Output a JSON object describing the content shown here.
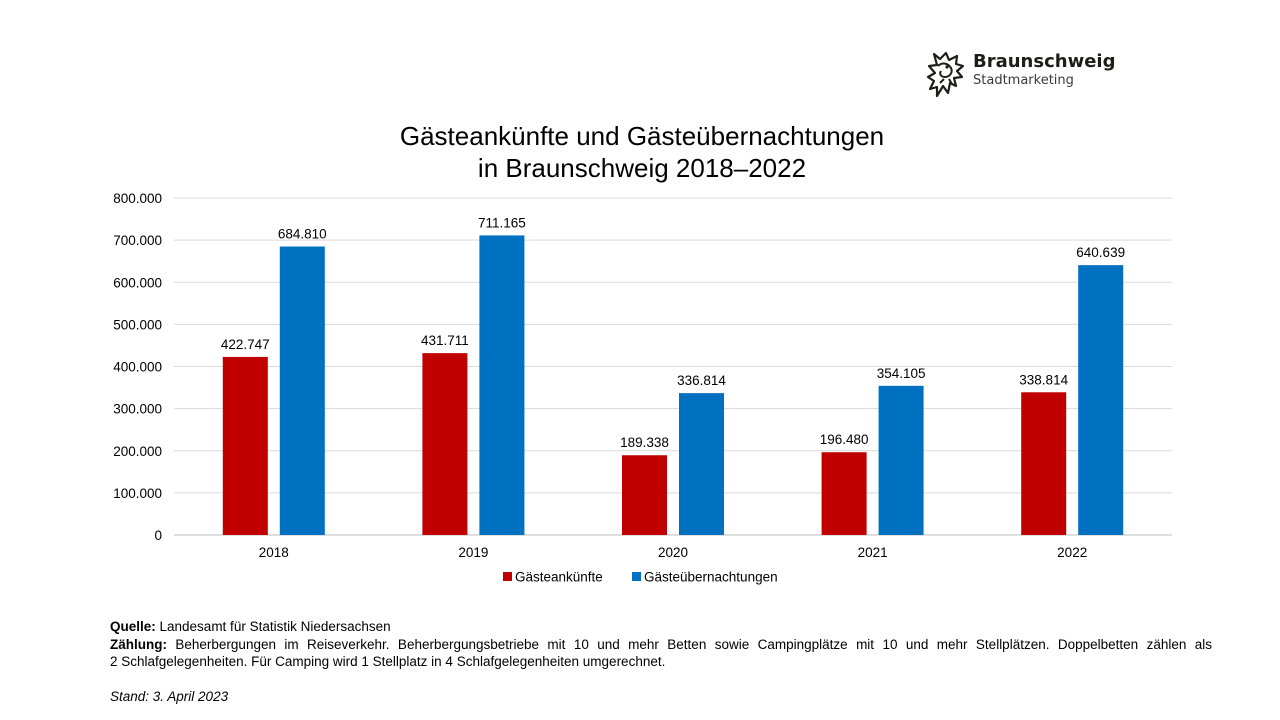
{
  "logo": {
    "title": "Braunschweig",
    "subtitle": "Stadtmarketing"
  },
  "chart_data": {
    "type": "bar",
    "title_lines": [
      "Gästeankünfte und Gästeübernachtungen",
      "in Braunschweig 2018–2022"
    ],
    "categories": [
      "2018",
      "2019",
      "2020",
      "2021",
      "2022"
    ],
    "series": [
      {
        "name": "Gästeankünfte",
        "color": "#c00000",
        "values": [
          422747,
          431711,
          189338,
          196480,
          338814
        ],
        "labels": [
          "422.747",
          "431.711",
          "189.338",
          "196.480",
          "338.814"
        ]
      },
      {
        "name": "Gästeübernachtungen",
        "color": "#0070c0",
        "values": [
          684810,
          711165,
          336814,
          354105,
          640639
        ],
        "labels": [
          "684.810",
          "711.165",
          "336.814",
          "354.105",
          "640.639"
        ]
      }
    ],
    "ylim": [
      0,
      800000
    ],
    "yticks": [
      0,
      100000,
      200000,
      300000,
      400000,
      500000,
      600000,
      700000,
      800000
    ],
    "ytick_labels": [
      "0",
      "100.000",
      "200.000",
      "300.000",
      "400.000",
      "500.000",
      "600.000",
      "700.000",
      "800.000"
    ],
    "xlabel": "",
    "ylabel": "",
    "grid": true,
    "legend_position": "bottom"
  },
  "footnotes": {
    "source_label": "Quelle:",
    "source_text": " Landesamt für Statistik Niedersachsen",
    "count_label": "Zählung:",
    "count_text_1": " Beherbergungen im Reiseverkehr. Beherbergungsbetriebe mit 10 und mehr Betten sowie Campingplätze mit 10 und mehr Stellplätzen. Doppelbetten zählen als",
    "count_text_2": "2 Schlafgelegenheiten. Für Camping wird 1 Stellplatz in 4 Schlafgelegenheiten umgerechnet.",
    "date": "Stand: 3. April 2023"
  }
}
